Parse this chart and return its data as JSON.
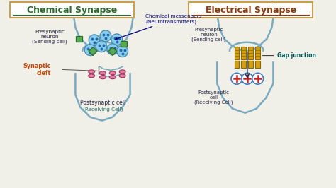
{
  "bg_color": "#f0f0e8",
  "title_left": "Chemical Synapse",
  "title_right": "Electrical Synapse",
  "title_left_color": "#2d6a2d",
  "title_right_color": "#8b3a0a",
  "title_box_edge": "#c8a050",
  "label_presynaptic_left": "Presynaptic\nneuron\n(Sending cell)",
  "label_presynaptic_right": "Presynaptic\nneuron\n(Sending cell)",
  "label_chemical": "Chemical messengers\n(Neurotransmitters)",
  "label_synaptic": "Synaptic\ncleft",
  "label_postsynaptic_left": "Postsynaptic cell\n(Receiving Cell)",
  "label_postsynaptic_right": "Postsynaptic\ncell\n(Receiving Cell)",
  "label_gap": "Gap junction",
  "neuron_line_color": "#7aaabf",
  "vesicle_fill": "#88ccee",
  "vesicle_edge": "#4488aa",
  "vesicle_dot": "#2266aa",
  "receptor_fill": "#e080a0",
  "receptor_edge": "#a03060",
  "green_sq_fill": "#55aa55",
  "green_sq_edge": "#2a6a2a",
  "gap_fill": "#d4a010",
  "gap_edge": "#8a6800",
  "plus_color": "#cc2222",
  "circle_edge": "#4477bb",
  "arrow_color": "#222244",
  "text_dark": "#222244",
  "text_teal": "#207070",
  "text_orange": "#cc4400"
}
